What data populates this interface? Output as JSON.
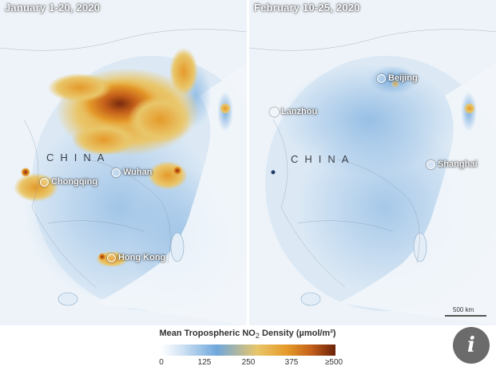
{
  "panels": {
    "left": {
      "title": "January 1-20, 2020",
      "country_label": "CHINA",
      "cities": [
        {
          "name": "Chongqing"
        },
        {
          "name": "Wuhan"
        },
        {
          "name": "Hong Kong"
        }
      ]
    },
    "right": {
      "title": "February 10-25, 2020",
      "country_label": "CHINA",
      "cities": [
        {
          "name": "Beijing"
        },
        {
          "name": "Lanzhou"
        },
        {
          "name": "Shanghai"
        }
      ]
    }
  },
  "scale": {
    "label": "500 km"
  },
  "legend": {
    "title_prefix": "Mean Tropospheric NO",
    "title_sub": "2",
    "title_suffix": " Density (µmol/m²)",
    "ticks": [
      "0",
      "125",
      "250",
      "375",
      "≥500"
    ]
  },
  "colors": {
    "background": "#e9f1f8",
    "low": "#6fa7dc",
    "mid": "#e9c66a",
    "high": "#e59a2a",
    "max": "#6b2109"
  },
  "icons": {
    "info": "info-icon"
  }
}
